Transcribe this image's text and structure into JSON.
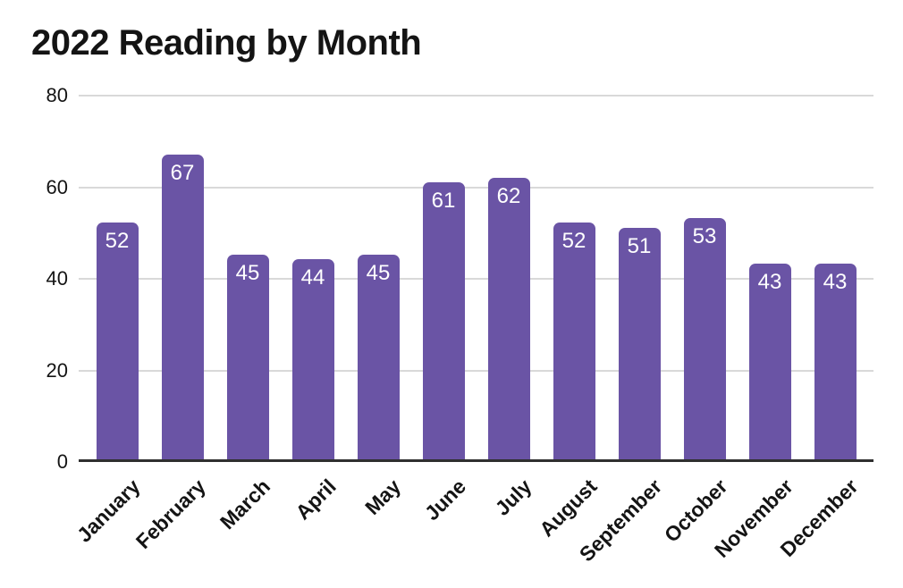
{
  "title": "2022 Reading by Month",
  "colors": {
    "bar": "#6a54a5",
    "gridline": "#d9d9d9",
    "axis": "#2f2f2f",
    "text": "#141414",
    "value_label": "#ffffff",
    "background": "#ffffff"
  },
  "chart_data": {
    "type": "bar",
    "title": "2022 Reading by Month",
    "categories": [
      "January",
      "February",
      "March",
      "April",
      "May",
      "June",
      "July",
      "August",
      "September",
      "October",
      "November",
      "December"
    ],
    "values": [
      52,
      67,
      45,
      44,
      45,
      61,
      62,
      52,
      51,
      53,
      43,
      43
    ],
    "xlabel": "",
    "ylabel": "",
    "ylim": [
      0,
      80
    ],
    "yticks": [
      0,
      20,
      40,
      60,
      80
    ],
    "grid": true,
    "legend": false,
    "value_labels": "inside top, white",
    "x_tick_rotation_deg": -45,
    "bar_corner_radius": "rounded top"
  }
}
